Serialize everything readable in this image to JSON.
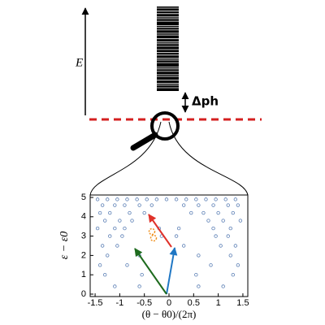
{
  "chart_data": {
    "type": "scatter",
    "annotations": {
      "energy_axis": "E",
      "gap": "Δph"
    },
    "x_label": "(θ − θ0)/(2π)",
    "y_label": "ε − ε0",
    "xlim": [
      -1.6,
      1.6
    ],
    "ylim": [
      0,
      5
    ],
    "xticks": [
      -1.5,
      -1,
      -0.5,
      0,
      0.5,
      1,
      1.5
    ],
    "yticks": [
      0,
      1,
      2,
      3,
      4,
      5
    ],
    "color": "#5b7fb5",
    "x": [
      -1.45,
      -1.25,
      -1.05,
      -0.85,
      -0.65,
      -0.45,
      -0.25,
      -0.05,
      0.15,
      0.35,
      0.55,
      0.75,
      0.95,
      1.15,
      1.35,
      -1.35,
      -1.1,
      -0.9,
      -0.6,
      -0.35,
      0.3,
      0.6,
      0.9,
      1.2,
      1.4,
      -1.4,
      -1.2,
      -0.8,
      -0.5,
      0.45,
      0.7,
      1.0,
      1.3,
      -1.3,
      -1.0,
      -0.75,
      0.8,
      1.1,
      1.45,
      -1.45,
      -1.1,
      -0.9,
      -0.2,
      0.2,
      0.9,
      1.25,
      -1.2,
      -0.95,
      -0.15,
      0.15,
      0.95,
      1.2,
      -1.35,
      -1.05,
      0.3,
      1.05,
      1.35,
      -1.25,
      -0.6,
      0.6,
      1.25,
      -1.4,
      -0.85,
      0.85,
      1.4,
      -1.3,
      -0.55,
      0.55,
      1.3,
      -1.1,
      -0.6,
      0.6,
      1.1
    ],
    "y": [
      4.9,
      4.9,
      4.9,
      4.9,
      4.9,
      4.9,
      4.9,
      4.9,
      4.9,
      4.9,
      4.9,
      4.9,
      4.9,
      4.9,
      4.9,
      4.6,
      4.6,
      4.6,
      4.6,
      4.6,
      4.6,
      4.6,
      4.6,
      4.6,
      4.6,
      4.2,
      4.2,
      4.2,
      4.2,
      4.2,
      4.2,
      4.2,
      4.2,
      3.8,
      3.8,
      3.8,
      3.8,
      3.8,
      3.8,
      3.4,
      3.4,
      3.4,
      3.4,
      3.4,
      3.4,
      3.4,
      3.0,
      3.0,
      3.0,
      3.0,
      3.0,
      3.0,
      2.5,
      2.5,
      2.5,
      2.5,
      2.5,
      2.0,
      2.0,
      2.0,
      2.0,
      1.5,
      1.5,
      1.5,
      1.5,
      1.0,
      1.0,
      1.0,
      1.0,
      0.4,
      0.4,
      0.4,
      0.4
    ]
  }
}
